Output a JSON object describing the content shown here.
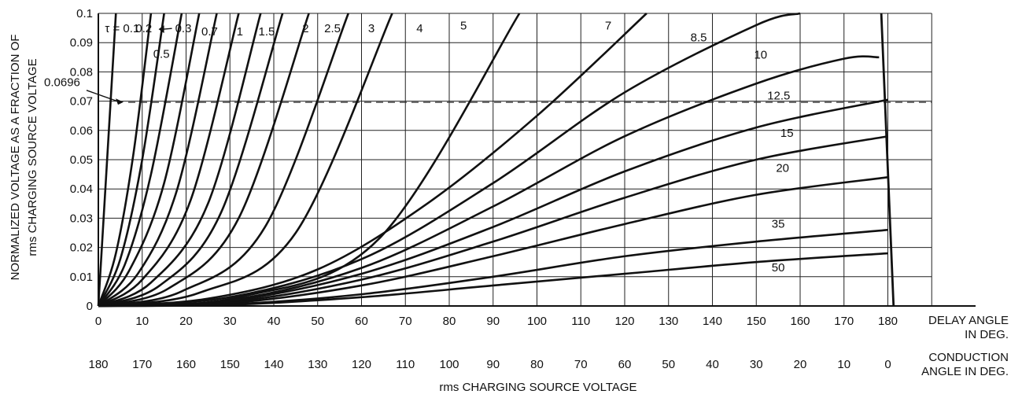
{
  "chart_data": {
    "type": "line",
    "title": "",
    "ylabel_line1": "NORMALIZED VOLTAGE AS A FRACTION OF",
    "ylabel_line2": "rms CHARGING SOURCE VOLTAGE",
    "xlabel": "rms CHARGING SOURCE VOLTAGE",
    "x_axis_top_title": [
      "DELAY ANGLE",
      "IN DEG."
    ],
    "x_axis_bottom_title": [
      "CONDUCTION",
      "ANGLE IN DEG."
    ],
    "xlim": [
      0,
      200
    ],
    "ylim": [
      0,
      0.1
    ],
    "grid": true,
    "x_ticks": [
      0,
      10,
      20,
      30,
      40,
      50,
      60,
      70,
      80,
      90,
      100,
      110,
      120,
      130,
      140,
      150,
      160,
      170,
      180
    ],
    "conduction_ticks": [
      "180",
      "170",
      "160",
      "150",
      "140",
      "130",
      "120",
      "110",
      "100",
      "90",
      "80",
      "70",
      "60",
      "50",
      "40",
      "30",
      "20",
      "10",
      "0"
    ],
    "y_ticks": [
      "0",
      "0.01",
      "0.02",
      "0.03",
      "0.04",
      "0.05",
      "0.06",
      "0.07",
      "0.08",
      "0.09",
      "0.1"
    ],
    "reference_line": {
      "y": 0.0696,
      "label": "0.0696",
      "style": "dashed"
    },
    "series": [
      {
        "name": "τ = 0.1",
        "x": [
          0,
          2,
          4
        ],
        "y": [
          0,
          0.05,
          0.1
        ]
      },
      {
        "name": "0.2",
        "x": [
          0,
          4,
          8,
          12
        ],
        "y": [
          0,
          0.018,
          0.052,
          0.1
        ]
      },
      {
        "name": "0.3",
        "x": [
          0,
          5,
          10,
          15
        ],
        "y": [
          0,
          0.016,
          0.05,
          0.1
        ]
      },
      {
        "name": "0.5",
        "x": [
          0,
          6,
          12,
          19
        ],
        "y": [
          0,
          0.014,
          0.045,
          0.1
        ]
      },
      {
        "name": "0.7",
        "x": [
          0,
          7,
          15,
          23
        ],
        "y": [
          0,
          0.012,
          0.042,
          0.1
        ]
      },
      {
        "name": "1",
        "x": [
          0,
          9,
          18,
          27
        ],
        "y": [
          0,
          0.011,
          0.04,
          0.1
        ]
      },
      {
        "name": "1.5",
        "x": [
          0,
          10,
          21,
          32
        ],
        "y": [
          0,
          0.009,
          0.036,
          0.1
        ]
      },
      {
        "name": "2",
        "x": [
          0,
          12,
          25,
          37
        ],
        "y": [
          0,
          0.008,
          0.035,
          0.1
        ]
      },
      {
        "name": "2.5",
        "x": [
          0,
          14,
          28,
          42
        ],
        "y": [
          0,
          0.007,
          0.032,
          0.1
        ]
      },
      {
        "name": "3",
        "x": [
          0,
          16,
          32,
          48
        ],
        "y": [
          0,
          0.006,
          0.03,
          0.1
        ]
      },
      {
        "name": "4",
        "x": [
          0,
          19,
          38,
          57
        ],
        "y": [
          0,
          0.005,
          0.027,
          0.1
        ]
      },
      {
        "name": "5",
        "x": [
          0,
          23,
          45,
          67
        ],
        "y": [
          0,
          0.0045,
          0.025,
          0.1
        ]
      },
      {
        "name": "7",
        "x": [
          0,
          32,
          64,
          96
        ],
        "y": [
          0,
          0.003,
          0.023,
          0.1
        ]
      },
      {
        "name": "8.5",
        "x": [
          0,
          25,
          50,
          75,
          100,
          125
        ],
        "y": [
          0,
          0.0025,
          0.0125,
          0.035,
          0.065,
          0.1
        ]
      },
      {
        "name": "10",
        "x": [
          0,
          30,
          60,
          90,
          120,
          150,
          160
        ],
        "y": [
          0,
          0.003,
          0.016,
          0.042,
          0.073,
          0.096,
          0.1
        ]
      },
      {
        "name": "12.5",
        "x": [
          0,
          30,
          60,
          90,
          120,
          150,
          170,
          178
        ],
        "y": [
          0,
          0.002,
          0.013,
          0.034,
          0.058,
          0.076,
          0.0845,
          0.085
        ]
      },
      {
        "name": "15",
        "x": [
          0,
          30,
          60,
          90,
          120,
          150,
          180
        ],
        "y": [
          0,
          0.0018,
          0.011,
          0.027,
          0.046,
          0.061,
          0.0705
        ]
      },
      {
        "name": "20",
        "x": [
          0,
          30,
          60,
          90,
          120,
          150,
          180
        ],
        "y": [
          0,
          0.0014,
          0.009,
          0.022,
          0.037,
          0.05,
          0.058
        ]
      },
      {
        "name": "35",
        "x": [
          0,
          30,
          60,
          90,
          120,
          150,
          180
        ],
        "y": [
          0,
          0.001,
          0.007,
          0.017,
          0.028,
          0.038,
          0.044
        ]
      },
      {
        "name": "50",
        "x": [
          0,
          30,
          60,
          90,
          120,
          150,
          180
        ],
        "y": [
          0,
          0.0006,
          0.004,
          0.01,
          0.017,
          0.022,
          0.026
        ]
      },
      {
        "name": "",
        "x": [
          0,
          30,
          60,
          90,
          120,
          150,
          180
        ],
        "y": [
          0,
          0.0004,
          0.003,
          0.007,
          0.011,
          0.015,
          0.018
        ]
      }
    ],
    "boundary_line": {
      "x": [
        178.5,
        181.3
      ],
      "y": [
        0.1,
        0
      ]
    },
    "curve_labels": [
      {
        "text": "τ = 0.1",
        "x": 1.5,
        "y": 0.0935
      },
      {
        "text": "0.2",
        "x": 8.5,
        "y": 0.0935
      },
      {
        "text": "0.3",
        "x": 17.5,
        "y": 0.0935
      },
      {
        "text": "0.5",
        "x": 12.5,
        "y": 0.0848
      },
      {
        "text": "0.7",
        "x": 23.5,
        "y": 0.0925
      },
      {
        "text": "1",
        "x": 31.5,
        "y": 0.0925
      },
      {
        "text": "1.5",
        "x": 36.5,
        "y": 0.0925
      },
      {
        "text": "2",
        "x": 46.5,
        "y": 0.0935
      },
      {
        "text": "2.5",
        "x": 51.5,
        "y": 0.0935
      },
      {
        "text": "3",
        "x": 61.5,
        "y": 0.0935
      },
      {
        "text": "4",
        "x": 72.5,
        "y": 0.0935
      },
      {
        "text": "5",
        "x": 82.5,
        "y": 0.0945
      },
      {
        "text": "7",
        "x": 115.5,
        "y": 0.0945
      },
      {
        "text": "8.5",
        "x": 135,
        "y": 0.0905
      },
      {
        "text": "10",
        "x": 149.5,
        "y": 0.0845
      },
      {
        "text": "12.5",
        "x": 152.5,
        "y": 0.0705
      },
      {
        "text": "15",
        "x": 155.5,
        "y": 0.0578
      },
      {
        "text": "20",
        "x": 154.5,
        "y": 0.0458
      },
      {
        "text": "35",
        "x": 153.5,
        "y": 0.0268
      },
      {
        "text": "50",
        "x": 153.5,
        "y": 0.0118
      }
    ]
  }
}
